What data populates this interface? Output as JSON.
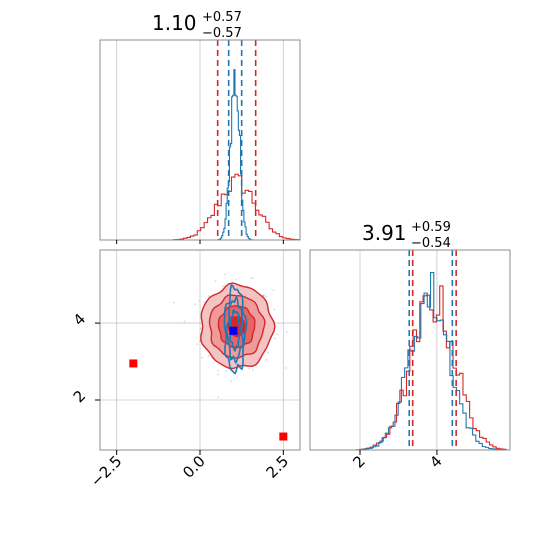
{
  "chart_data": {
    "type": "corner-plot",
    "colors": {
      "series_a": "#d62728",
      "series_b": "#1f77b4",
      "truth_point": "#0000ff",
      "extra_points": "#ff0000"
    },
    "grid": true,
    "series": [
      {
        "color": "#d62728"
      },
      {
        "color": "#1f77b4"
      }
    ],
    "param_1": {
      "title_value": "1.10",
      "title_plus": "+0.57",
      "title_minus": "−0.57",
      "range": [
        -3.0,
        3.0
      ],
      "ticks": [
        {
          "v": -2.5,
          "label": "−2.5"
        },
        {
          "v": 0.0,
          "label": "0.0"
        },
        {
          "v": 2.5,
          "label": "2.5"
        }
      ],
      "quantiles_red": [
        0.53,
        1.67
      ],
      "quantiles_blue": [
        0.86,
        1.25
      ],
      "mu_red": 1.1,
      "sd_red": 0.57,
      "mu_blue": 1.05,
      "sd_blue": 0.14
    },
    "param_2": {
      "title_value": "3.91",
      "title_plus": "+0.59",
      "title_minus": "−0.54",
      "range": [
        0.7,
        5.9
      ],
      "ticks": [
        {
          "v": 2,
          "label": "2"
        },
        {
          "v": 4,
          "label": "4"
        }
      ],
      "quantiles_red": [
        3.37,
        4.5
      ],
      "quantiles_blue": [
        3.28,
        4.4
      ],
      "mu_red": 3.91,
      "sd_red": 0.57,
      "mu_blue": 3.82,
      "sd_blue": 0.52
    },
    "truth_point": {
      "x": 1.0,
      "y": 3.8
    },
    "extra_points": [
      {
        "x": -2.0,
        "y": 2.95
      },
      {
        "x": 2.5,
        "y": 1.05
      }
    ]
  }
}
